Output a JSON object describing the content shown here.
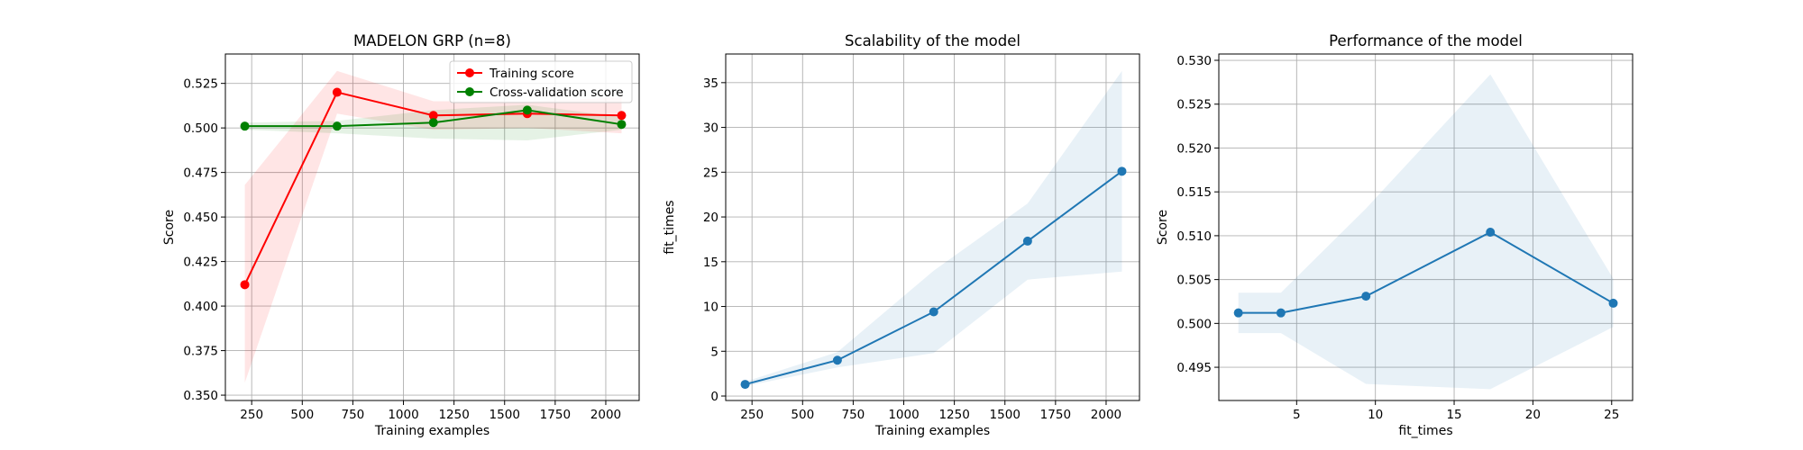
{
  "chart_data": [
    {
      "type": "line",
      "title": "MADELON GRP (n=8)",
      "xlabel": "Training examples",
      "ylabel": "Score",
      "xlim": [
        120,
        2165
      ],
      "ylim": [
        0.347,
        0.5415
      ],
      "xticks": [
        250,
        500,
        750,
        1000,
        1250,
        1500,
        1750,
        2000
      ],
      "yticks": [
        0.35,
        0.375,
        0.4,
        0.425,
        0.45,
        0.475,
        0.5,
        0.525
      ],
      "grid": true,
      "legend": "upper right",
      "series": [
        {
          "name": "Training score",
          "color": "#ff0000",
          "x": [
            216,
            672,
            1148,
            1612,
            2078
          ],
          "y": [
            0.412,
            0.52,
            0.507,
            0.508,
            0.507
          ],
          "band_low": [
            0.357,
            0.508,
            0.499,
            0.5,
            0.497
          ],
          "band_high": [
            0.468,
            0.532,
            0.515,
            0.515,
            0.517
          ]
        },
        {
          "name": "Cross-validation score",
          "color": "#008000",
          "x": [
            216,
            672,
            1148,
            1612,
            2078
          ],
          "y": [
            0.501,
            0.501,
            0.503,
            0.51,
            0.502
          ],
          "band_low": [
            0.499,
            0.497,
            0.494,
            0.493,
            0.499
          ],
          "band_high": [
            0.503,
            0.504,
            0.51,
            0.513,
            0.506
          ]
        }
      ]
    },
    {
      "type": "line",
      "title": "Scalability of the model",
      "xlabel": "Training examples",
      "ylabel": "fit_times",
      "xlim": [
        120,
        2165
      ],
      "ylim": [
        -0.5,
        38.2
      ],
      "xticks": [
        250,
        500,
        750,
        1000,
        1250,
        1500,
        1750,
        2000
      ],
      "yticks": [
        0,
        5,
        10,
        15,
        20,
        25,
        30,
        35
      ],
      "grid": true,
      "series": [
        {
          "color": "#1f77b4",
          "x": [
            216,
            672,
            1148,
            1612,
            2078
          ],
          "y": [
            1.3,
            4.0,
            9.4,
            17.3,
            25.1
          ],
          "band_low": [
            1.1,
            3.2,
            4.8,
            13.0,
            13.9
          ],
          "band_high": [
            1.6,
            4.9,
            14.0,
            21.5,
            36.3
          ]
        }
      ]
    },
    {
      "type": "line",
      "title": "Performance of the model",
      "xlabel": "fit_times",
      "ylabel": "Score",
      "xlim": [
        0.06,
        26.33
      ],
      "ylim": [
        0.49121,
        0.53072
      ],
      "xticks": [
        5,
        10,
        15,
        20,
        25
      ],
      "yticks": [
        0.495,
        0.5,
        0.505,
        0.51,
        0.515,
        0.52,
        0.525,
        0.53
      ],
      "grid": true,
      "series": [
        {
          "color": "#1f77b4",
          "x": [
            1.3,
            4.0,
            9.4,
            17.3,
            25.1
          ],
          "y": [
            0.5012,
            0.5012,
            0.5031,
            0.5104,
            0.5023
          ],
          "band_low": [
            0.4989,
            0.4989,
            0.4931,
            0.4925,
            0.4996
          ],
          "band_high": [
            0.5035,
            0.5035,
            0.5131,
            0.5284,
            0.5051
          ]
        }
      ]
    }
  ]
}
